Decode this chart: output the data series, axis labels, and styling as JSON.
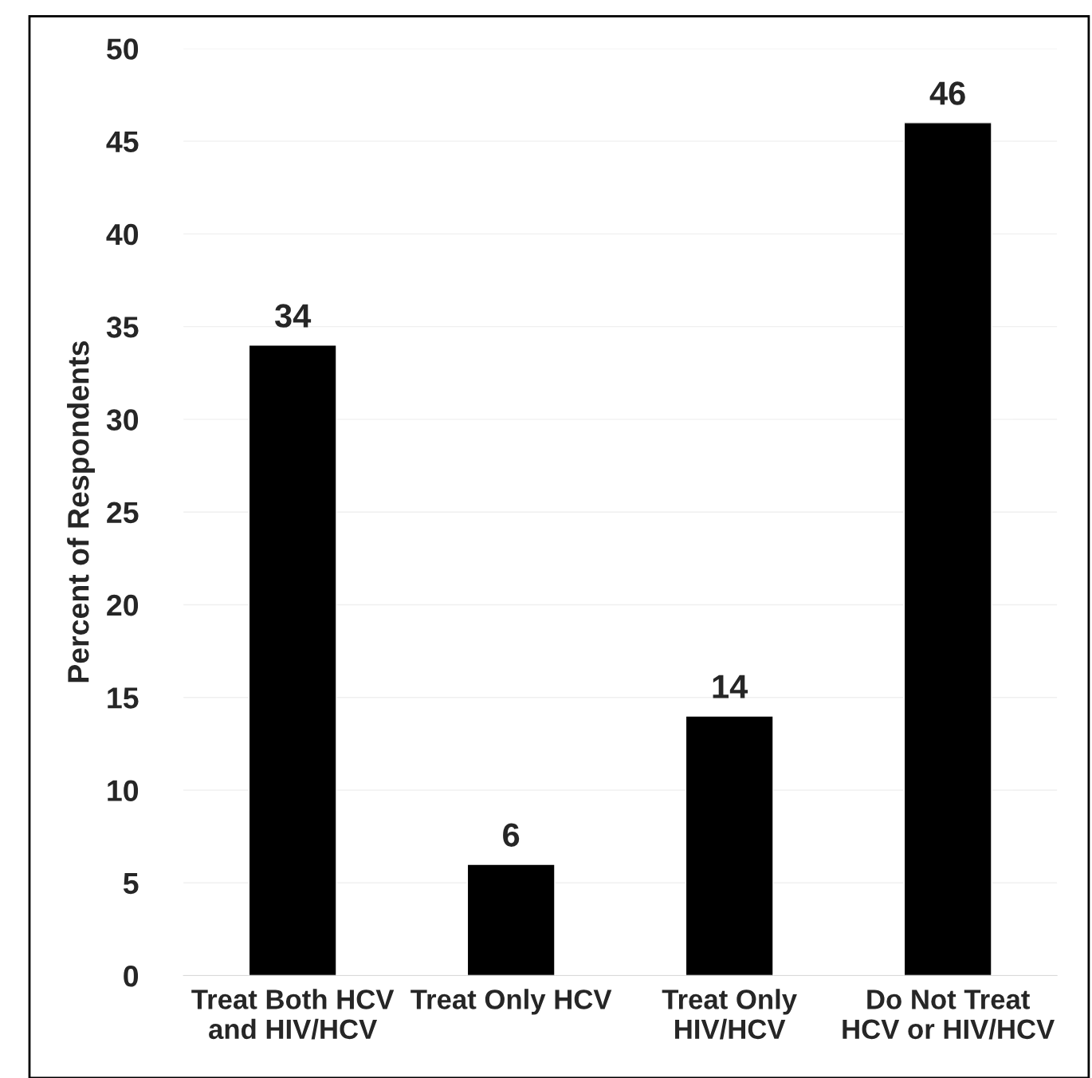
{
  "chart_data": {
    "type": "bar",
    "ylabel": "Percent of Respondents",
    "categories": [
      "Treat Both HCV\nand HIV/HCV",
      "Treat Only HCV",
      "Treat Only\nHIV/HCV",
      "Do Not Treat\nHCV or HIV/HCV"
    ],
    "values": [
      34,
      6,
      14,
      46
    ],
    "color": "#000000",
    "ylim": [
      0,
      50
    ],
    "yticks": [
      0,
      5,
      10,
      15,
      20,
      25,
      30,
      35,
      40,
      45,
      50
    ],
    "grid": "y",
    "data_labels": true,
    "legend": false
  }
}
